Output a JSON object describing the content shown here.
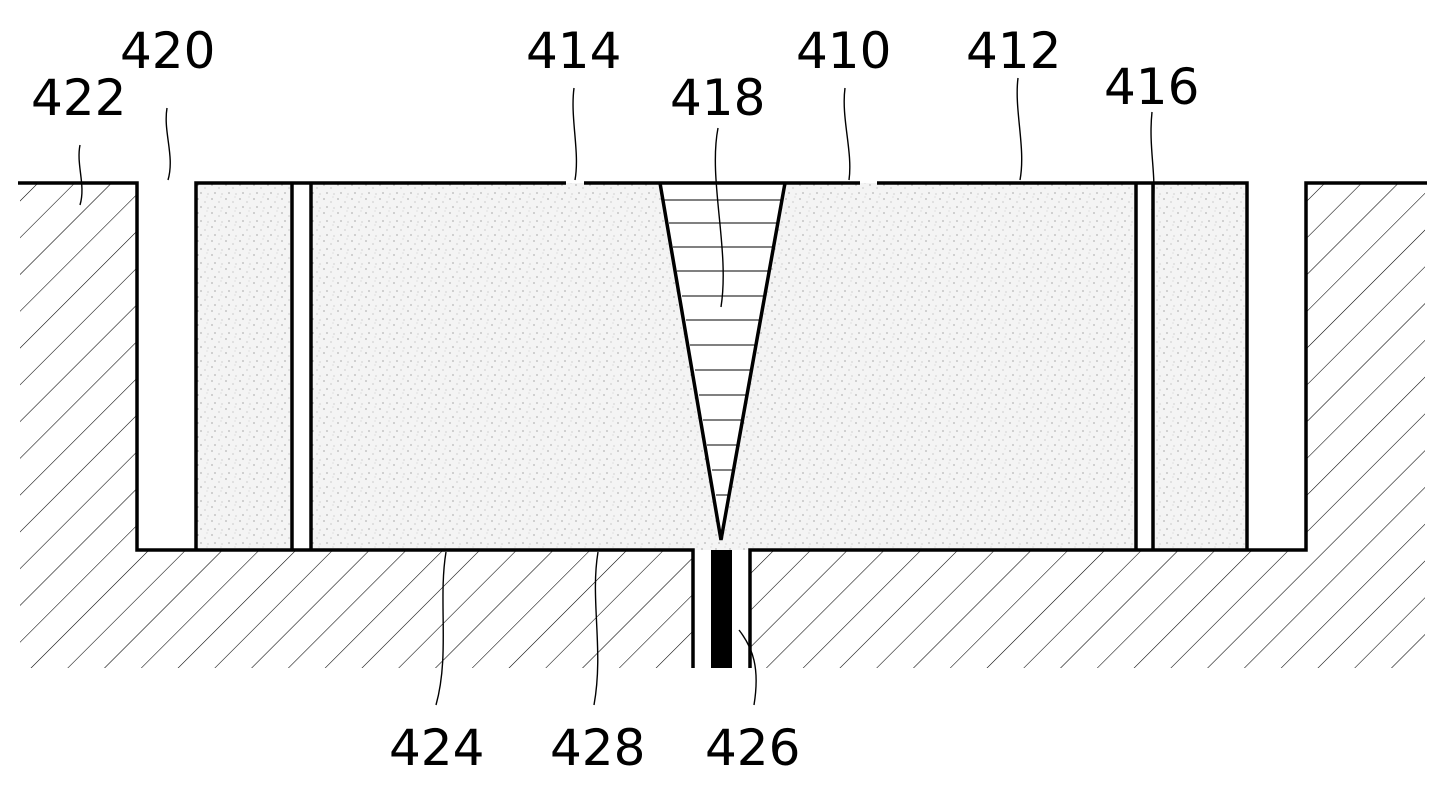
{
  "figure": {
    "labels": {
      "l410": "410",
      "l412": "412",
      "l414": "414",
      "l416": "416",
      "l418": "418",
      "l420": "420",
      "l422": "422",
      "l424": "424",
      "l426": "426",
      "l428": "428"
    }
  }
}
